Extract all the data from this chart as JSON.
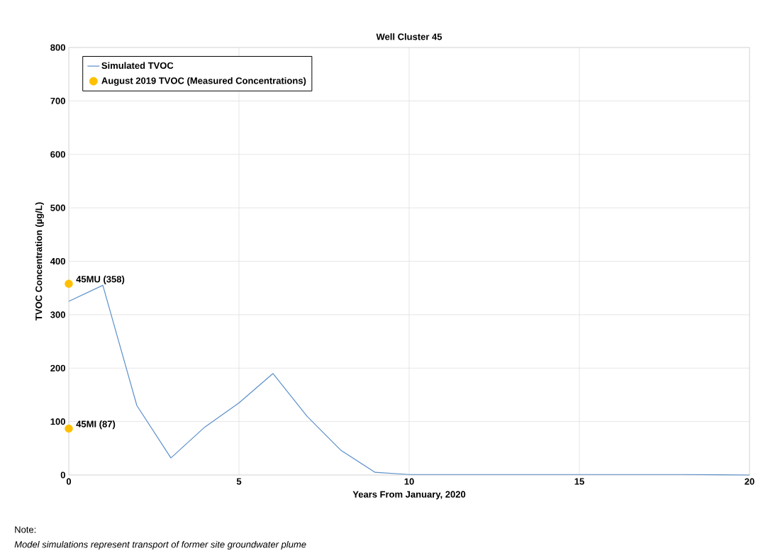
{
  "chart_data": {
    "type": "line",
    "title": "Well Cluster 45",
    "xlabel": "Years From January, 2020",
    "ylabel": "TVOC Concentration (µg/L)",
    "xlim": [
      0,
      20
    ],
    "ylim": [
      0,
      800
    ],
    "xticks": [
      0,
      5,
      10,
      15,
      20
    ],
    "yticks": [
      0,
      100,
      200,
      300,
      400,
      500,
      600,
      700,
      800
    ],
    "grid": true,
    "legend": "top left",
    "series": [
      {
        "name": "Simulated TVOC",
        "color": "#5b8fc9",
        "x": [
          0,
          1,
          2,
          3,
          4,
          5,
          6,
          7,
          8,
          9,
          10,
          12,
          15,
          18,
          20
        ],
        "values": [
          325,
          355,
          130,
          32,
          90,
          135,
          190,
          110,
          46,
          5,
          1,
          1,
          1,
          1,
          0
        ],
        "marker": "none",
        "line_style": "solid"
      },
      {
        "name": "August 2019 TVOC (Measured Concentrations)",
        "type": "scatter",
        "color": "#ffc000",
        "x": [
          0,
          0
        ],
        "values": [
          358,
          87
        ],
        "marker": "circle"
      }
    ],
    "annotations": [
      {
        "text": "45MU (358)",
        "x": 0,
        "y": 358
      },
      {
        "text": "45MI (87)",
        "x": 0,
        "y": 87
      },
      "Note:",
      "Model simulations represent transport of former site groundwater plume"
    ]
  }
}
